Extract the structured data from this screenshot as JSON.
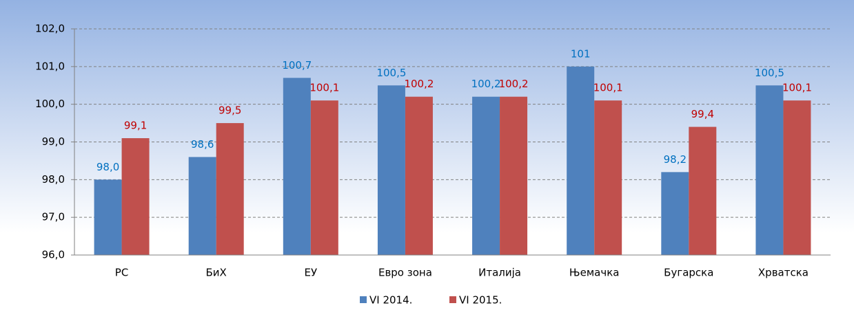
{
  "chart_data": {
    "type": "bar",
    "categories": [
      "РС",
      "БиХ",
      "ЕУ",
      "Евро зона",
      "Италија",
      "Њемачка",
      "Бугарска",
      "Хрватска"
    ],
    "series": [
      {
        "name": "VI 2014.",
        "color": "#4f81bd",
        "label_color": "#0070c0",
        "values": [
          98.0,
          98.6,
          100.7,
          100.5,
          100.2,
          101,
          98.2,
          100.5
        ],
        "value_labels": [
          "98,0",
          "98,6",
          "100,7",
          "100,5",
          "100,2",
          "101",
          "98,2",
          "100,5"
        ]
      },
      {
        "name": "VI 2015.",
        "color": "#c0504d",
        "label_color": "#c00000",
        "values": [
          99.1,
          99.5,
          100.1,
          100.2,
          100.2,
          100.1,
          99.4,
          100.1
        ],
        "value_labels": [
          "99,1",
          "99,5",
          "100,1",
          "100,2",
          "100,2",
          "100,1",
          "99,4",
          "100,1"
        ]
      }
    ],
    "ylim": [
      96,
      102
    ],
    "yticks": [
      {
        "value": 96,
        "label": "96,0"
      },
      {
        "value": 97,
        "label": "97,0"
      },
      {
        "value": 98,
        "label": "98,0"
      },
      {
        "value": 99,
        "label": "99,0"
      },
      {
        "value": 100,
        "label": "100,0"
      },
      {
        "value": 101,
        "label": "101,0"
      },
      {
        "value": 102,
        "label": "102,0"
      }
    ],
    "grid": true,
    "legend": "bottom"
  }
}
